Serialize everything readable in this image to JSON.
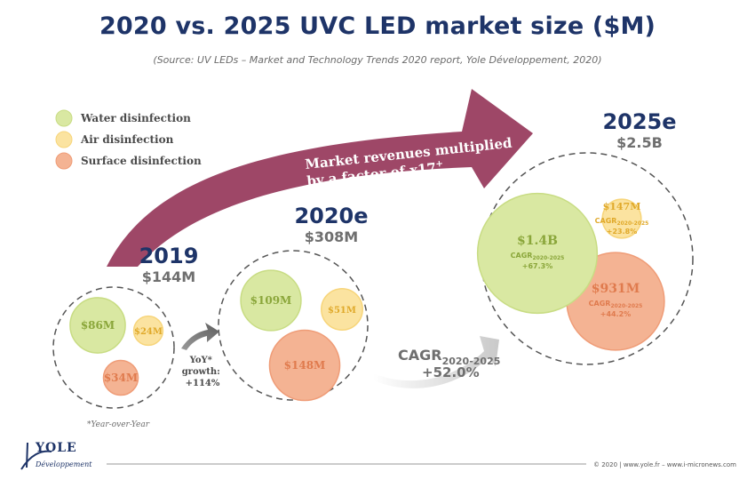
{
  "title": "2020 vs. 2025 UVC LED market size ($M)",
  "subtitle": "(Source: UV LEDs – Market and Technology Trends 2020 report, Yole Développement, 2020)",
  "colors": {
    "water": "#d9e8a2",
    "water_stroke": "#c8dc83",
    "air": "#fbe3a0",
    "air_stroke": "#f7d57a",
    "surface": "#f4b393",
    "surface_stroke": "#ef9c77",
    "arrow": "#9e4767",
    "navy": "#1e3468",
    "gray": "#6f6f6f"
  },
  "legend": [
    {
      "label": "Water disinfection",
      "color": "#d9e8a2"
    },
    {
      "label": "Air disinfection",
      "color": "#fbe3a0"
    },
    {
      "label": "Surface disinfection",
      "color": "#f4b393"
    }
  ],
  "big_arrow": {
    "line1": "Market revenues multiplied",
    "line2": "by a factor of x17",
    "sup": "+"
  },
  "yoy": {
    "line1": "YoY*",
    "line2": "growth:",
    "line3": "+114%"
  },
  "cagr_arrow": {
    "main": "CAGR",
    "sub": "2020-2025",
    "value": "+52.0%"
  },
  "footnote": "*Year-over-Year",
  "footer": "© 2020 | www.yole.fr – www.i-micronews.com",
  "logo": {
    "name": "YOLE",
    "tagline": "Développement"
  },
  "chart_data": {
    "type": "bubble",
    "title": "2020 vs. 2025 UVC LED market size ($M)",
    "categories": [
      "Water disinfection",
      "Air disinfection",
      "Surface disinfection"
    ],
    "groups": [
      {
        "year": "2019",
        "total": "$144M",
        "total_value": 144,
        "values": [
          86,
          24,
          34
        ],
        "labels": [
          "$86M",
          "$24M",
          "$34M"
        ]
      },
      {
        "year": "2020e",
        "total": "$308M",
        "total_value": 308,
        "values": [
          109,
          51,
          148
        ],
        "labels": [
          "$109M",
          "$51M",
          "$148M"
        ]
      },
      {
        "year": "2025e",
        "total": "$2.5B",
        "total_value": 2500,
        "values": [
          1400,
          147,
          931
        ],
        "labels": [
          "$1.4B",
          "$147M",
          "$931M"
        ],
        "cagr": [
          "+67.3%",
          "+23.8%",
          "+44.2%"
        ]
      }
    ],
    "yoy_growth_2019_2020": "+114%",
    "cagr_2020_2025_total": "+52.0%",
    "growth_factor": "x17"
  }
}
